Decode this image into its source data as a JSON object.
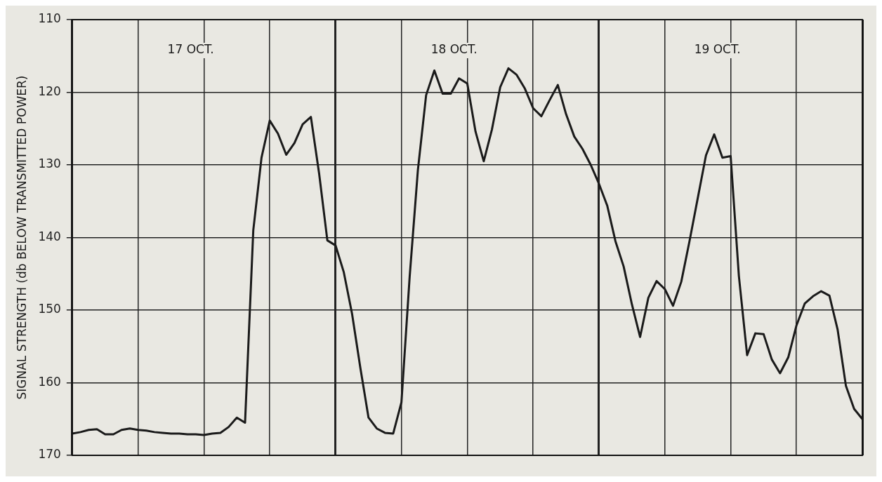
{
  "chart_data": {
    "type": "line",
    "ylabel": "SIGNAL STRENGTH (db BELOW TRANSMITTED POWER)",
    "categories": [
      null,
      null,
      null,
      null,
      null,
      null,
      null,
      null,
      null,
      null,
      null,
      null,
      null,
      null,
      null,
      null,
      null,
      null,
      null,
      null,
      null,
      null,
      null,
      null,
      null,
      null,
      null,
      null,
      null,
      null,
      null,
      null,
      null,
      null,
      null,
      null,
      null,
      null,
      null,
      null,
      null,
      null,
      null,
      null,
      null,
      null,
      null,
      null,
      null,
      null,
      null,
      null,
      null,
      null,
      null,
      null,
      null,
      null,
      null,
      null,
      null,
      null,
      null,
      null,
      null,
      null,
      null,
      null,
      null,
      null,
      null,
      null,
      null,
      null,
      null,
      null,
      null,
      null,
      null,
      null,
      null,
      null,
      null,
      null,
      null,
      null,
      null,
      null,
      null,
      null,
      null,
      null,
      null,
      null,
      null,
      null,
      null
    ],
    "ylim": [
      170,
      110
    ],
    "yticks": [
      110,
      120,
      130,
      140,
      150,
      160,
      170
    ],
    "tick_labels": "y",
    "grid": true,
    "marker": "none",
    "line_style": "solid",
    "annotations": [
      "17 OCT.",
      "18 OCT.",
      "19 OCT."
    ],
    "series": [
      {
        "color": "#1a1a1a",
        "values": [
          167,
          166.8,
          166.5,
          166.4,
          167.1,
          167.1,
          166.5,
          166.3,
          166.5,
          166.6,
          166.8,
          166.9,
          167,
          167,
          167.1,
          167.1,
          167.2,
          167,
          166.9,
          166.1,
          164.8,
          165.5,
          139,
          129,
          123.9,
          125.7,
          128.6,
          127,
          124.4,
          123.4,
          131.2,
          140.4,
          141.1,
          144.8,
          150.5,
          157.9,
          164.8,
          166.3,
          166.9,
          167,
          162.7,
          145.4,
          130.7,
          120.4,
          117,
          120.2,
          120.2,
          118.1,
          118.8,
          125.4,
          129.5,
          125.1,
          119.3,
          116.7,
          117.6,
          119.5,
          122.2,
          123.3,
          121.1,
          119,
          123,
          126.1,
          127.8,
          130,
          132.6,
          135.6,
          140.5,
          144,
          149.2,
          153.7,
          148.3,
          146,
          147.1,
          149.4,
          146.1,
          140.5,
          134.6,
          128.7,
          125.8,
          129,
          128.8,
          145.3,
          156.2,
          153.2,
          153.3,
          156.8,
          158.7,
          156.5,
          152.1,
          149.1,
          148.1,
          147.4,
          148,
          152.7,
          160.4,
          163.6,
          165
        ]
      }
    ]
  }
}
